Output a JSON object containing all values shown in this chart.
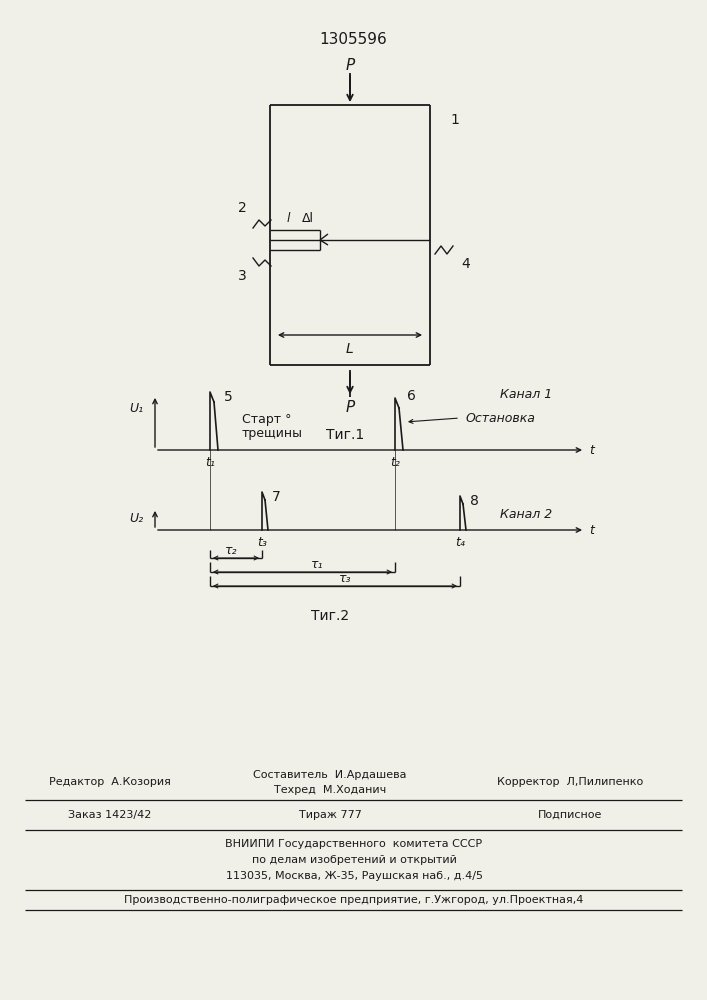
{
  "patent_number": "1305596",
  "fig1_label": "Τиг.1",
  "fig2_label": "Τиг.2",
  "canal1_label": "Канал 1",
  "canal2_label": "Канал 2",
  "start_label_1": "Старт °",
  "start_label_2": "трещины",
  "stop_label": "Остановка",
  "u1_label": "U₁",
  "u2_label": "U₂",
  "t_label": "t",
  "P_label": "P",
  "L_label": "L",
  "l_label": "l",
  "dl_label": "Δl",
  "t_labels": [
    "t₁",
    "t₂",
    "t₃",
    "t₄"
  ],
  "tau_labels": [
    "τ₂",
    "τ₁",
    "τ₃"
  ],
  "editor_line": "Редактор  А.Козория",
  "composer_line": "Составитель  И.Ардашева",
  "techred_line": "Техред  М.Ходанич",
  "corrector_line": "Корректор  Л,Пилипенко",
  "order_line": "Заказ 1423/42",
  "tirazh_line": "Тираж 777",
  "podpisnoe_line": "Подписное",
  "vnipi_line": "ВНИИПИ Государственного  комитета СССР",
  "podel_line": "по делам изобретений и открытий",
  "address_line": "113035, Москва, Ж-35, Раушская наб., д.4/5",
  "factory_line": "Производственно-полиграфическое предприятие, г.Ужгород, ул.Проектная,4",
  "bg_color": "#f0efe8",
  "line_color": "#1a1a1a",
  "text_color": "#1a1a1a"
}
